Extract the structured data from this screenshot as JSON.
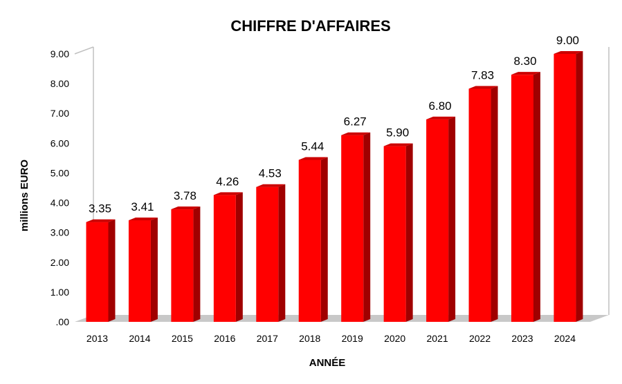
{
  "chart_data": {
    "type": "bar",
    "title": "CHIFFRE D'AFFAIRES",
    "xlabel": "ANNÉE",
    "ylabel": "millions EURO",
    "categories": [
      "2013",
      "2014",
      "2015",
      "2016",
      "2017",
      "2018",
      "2019",
      "2020",
      "2021",
      "2022",
      "2023",
      "2024"
    ],
    "values": [
      3.35,
      3.41,
      3.78,
      4.26,
      4.53,
      5.44,
      6.27,
      5.9,
      6.8,
      7.83,
      8.3,
      9.0
    ],
    "data_labels": [
      "3.35",
      "3.41",
      "3.78",
      "4.26",
      "4.53",
      "5.44",
      "6.27",
      "5.90",
      "6.80",
      "7.83",
      "8.30",
      "9.00"
    ],
    "yticks": [
      0,
      1,
      2,
      3,
      4,
      5,
      6,
      7,
      8,
      9
    ],
    "ytick_labels": [
      ".00",
      "1.00",
      "2.00",
      "3.00",
      "4.00",
      "5.00",
      "6.00",
      "7.00",
      "8.00",
      "9.00"
    ],
    "ylim": [
      0,
      9
    ],
    "grid": false,
    "legend": "none",
    "style": "3d",
    "colors": {
      "bar_front": "#ff0000",
      "bar_side": "#a00000",
      "bar_top": "#cc0000",
      "floor": "#c8c8c8",
      "wall_line": "#c0c0c0"
    }
  }
}
